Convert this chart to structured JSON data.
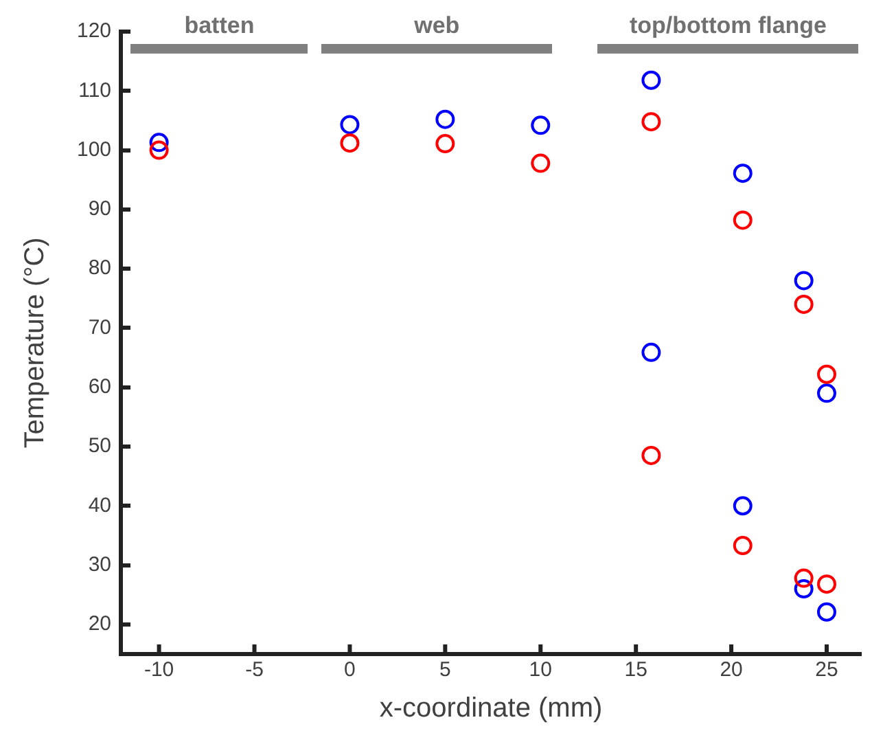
{
  "chart_data": {
    "type": "scatter",
    "xlabel": "x-coordinate (mm)",
    "ylabel": "Temperature (°C)",
    "xlim": [
      -12,
      26.8
    ],
    "xticks": [
      -10,
      -5,
      0,
      5,
      10,
      15,
      20,
      25
    ],
    "ylim": [
      15,
      120
    ],
    "yticks": [
      20,
      30,
      40,
      50,
      60,
      70,
      80,
      90,
      100,
      110,
      120
    ],
    "grid": false,
    "legend": false,
    "marker": "circle",
    "annotations": [
      "batten",
      "web",
      "top/bottom flange"
    ],
    "series": [
      {
        "color": "#ff0000",
        "x": [
          -10,
          0,
          5,
          10,
          15.8,
          15.8,
          20.6,
          20.6,
          23.8,
          23.8,
          25,
          25
        ],
        "values": [
          100,
          101.2,
          101.1,
          97.8,
          104.8,
          48.5,
          88.2,
          33.3,
          74,
          27.8,
          62.2,
          26.8
        ]
      },
      {
        "color": "#0000ff",
        "x": [
          -10,
          0,
          5,
          10,
          15.8,
          15.8,
          20.6,
          20.6,
          23.8,
          23.8,
          25,
          25
        ],
        "values": [
          101.3,
          104.3,
          105.2,
          104.2,
          111.8,
          65.9,
          96.1,
          40,
          78,
          26,
          59,
          22.1
        ]
      }
    ]
  }
}
